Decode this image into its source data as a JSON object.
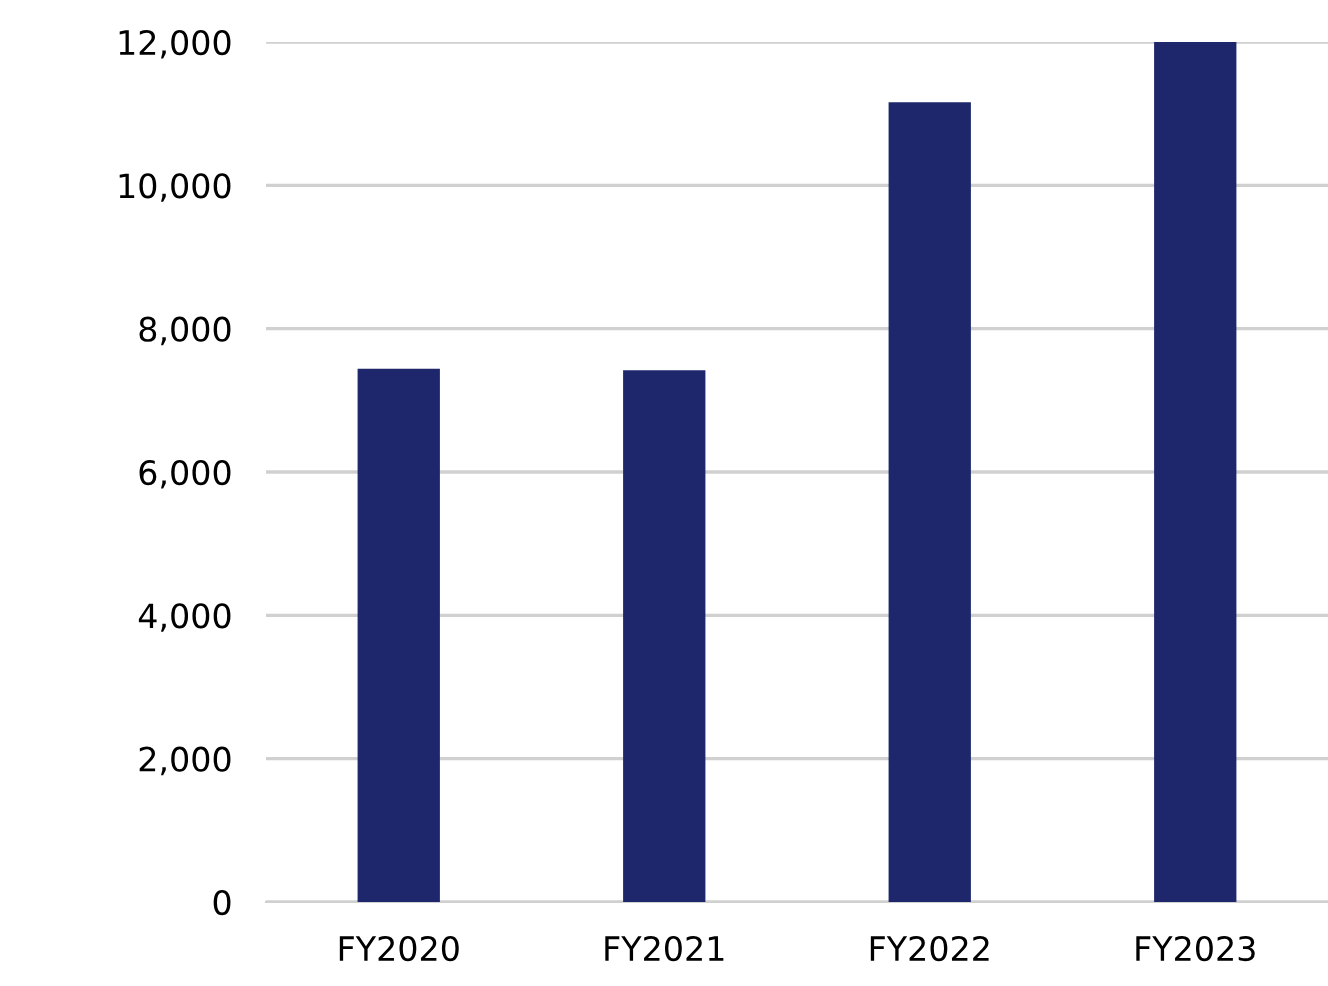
{
  "chart_data": {
    "type": "bar",
    "categories": [
      "FY2020",
      "FY2021",
      "FY2022",
      "FY2023"
    ],
    "values": [
      7440,
      7420,
      11160,
      12000
    ],
    "color": "#1e276b",
    "ylim": [
      0,
      12000
    ],
    "yticks": [
      {
        "value": 0,
        "label": "0"
      },
      {
        "value": 2000,
        "label": "2,000"
      },
      {
        "value": 4000,
        "label": "4,000"
      },
      {
        "value": 6000,
        "label": "6,000"
      },
      {
        "value": 8000,
        "label": "8,000"
      },
      {
        "value": 10000,
        "label": "10,000"
      },
      {
        "value": 12000,
        "label": "12,000"
      }
    ],
    "grid": "y"
  }
}
